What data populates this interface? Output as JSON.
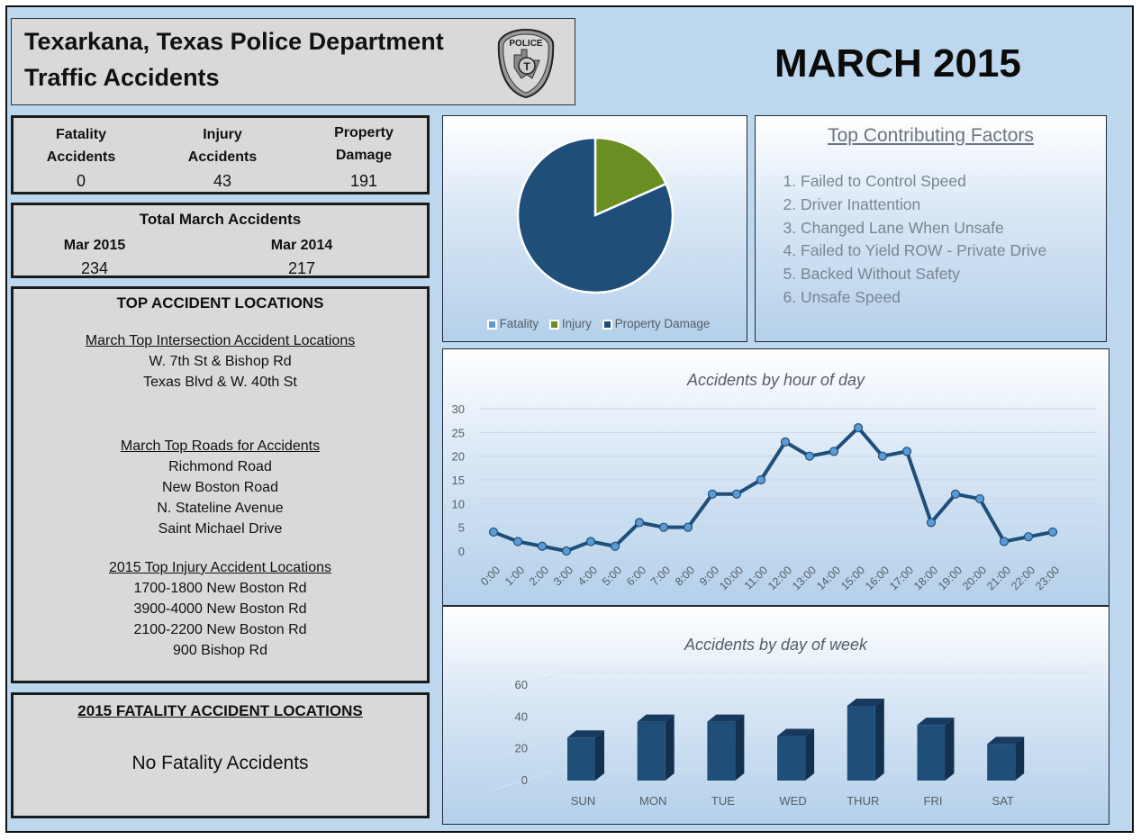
{
  "header": {
    "line1": "Texarkana, Texas Police Department",
    "line2": "Traffic Accidents",
    "badge_icon": "police-badge-icon",
    "month_title": "MARCH 2015"
  },
  "stats": [
    {
      "label_line1": "Fatality",
      "label_line2": "Accidents",
      "value": "0"
    },
    {
      "label_line1": "Injury",
      "label_line2": "Accidents",
      "value": "43"
    },
    {
      "label_line1": "Property",
      "label_line2": "Damage",
      "value": "191"
    }
  ],
  "totals": {
    "heading": "Total March Accidents",
    "items": [
      {
        "label": "Mar 2015",
        "value": "234"
      },
      {
        "label": "Mar 2014",
        "value": "217"
      }
    ]
  },
  "locations": {
    "heading": "TOP ACCIDENT LOCATIONS",
    "sections": [
      {
        "title": "March Top Intersection Accident Locations",
        "items": [
          "W. 7th St & Bishop Rd",
          "Texas Blvd & W. 40th St"
        ]
      },
      {
        "title": "March Top Roads for Accidents",
        "items": [
          "Richmond Road",
          "New Boston Road",
          "N. Stateline Avenue",
          "Saint Michael Drive"
        ]
      },
      {
        "title": "2015 Top Injury Accident Locations",
        "items": [
          "1700-1800 New Boston Rd",
          "3900-4000 New Boston Rd",
          "2100-2200 New Boston Rd",
          "900 Bishop Rd"
        ]
      }
    ]
  },
  "fatality_locations": {
    "heading": "2015 FATALITY ACCIDENT LOCATIONS",
    "message": "No Fatality Accidents"
  },
  "factors": {
    "heading": "Top Contributing Factors",
    "items": [
      "Failed to Control Speed",
      "Driver Inattention",
      "Changed Lane When Unsafe",
      "Failed to Yield ROW - Private Drive",
      "Backed Without Safety",
      "Unsafe Speed"
    ]
  },
  "colors": {
    "background": "#bdd7ee",
    "panel_gray": "#d9d9d9",
    "fatality": "#5b9bd5",
    "injury": "#6b8e23",
    "property_damage": "#1f4e79",
    "line": "#1f4e79",
    "marker": "#5b9bd5",
    "bar": "#1f4e79"
  },
  "chart_data": [
    {
      "type": "pie",
      "title": "",
      "categories": [
        "Fatality",
        "Injury",
        "Property Damage"
      ],
      "values": [
        0,
        43,
        191
      ],
      "legend": "bottom"
    },
    {
      "type": "line",
      "title": "Accidents by hour of day",
      "x": [
        "0:00",
        "1:00",
        "2:00",
        "3:00",
        "4:00",
        "5:00",
        "6:00",
        "7:00",
        "8:00",
        "9:00",
        "10:00",
        "11:00",
        "12:00",
        "13:00",
        "14:00",
        "15:00",
        "16:00",
        "17:00",
        "18:00",
        "19:00",
        "20:00",
        "21:00",
        "22:00",
        "23:00"
      ],
      "values": [
        4,
        2,
        1,
        0,
        2,
        1,
        6,
        5,
        5,
        12,
        12,
        15,
        23,
        20,
        21,
        26,
        20,
        21,
        6,
        12,
        11,
        2,
        3,
        4
      ],
      "ylim": [
        0,
        30
      ],
      "yticks": [
        0,
        5,
        10,
        15,
        20,
        25,
        30
      ],
      "grid": true,
      "xlabel": "",
      "ylabel": ""
    },
    {
      "type": "bar",
      "title": "Accidents by day of week",
      "categories": [
        "SUN",
        "MON",
        "TUE",
        "WED",
        "THUR",
        "FRI",
        "SAT"
      ],
      "values": [
        27,
        37,
        37,
        28,
        47,
        35,
        23
      ],
      "ylim": [
        0,
        60
      ],
      "yticks": [
        0,
        20,
        40,
        60
      ],
      "grid": true,
      "xlabel": "",
      "ylabel": ""
    }
  ]
}
